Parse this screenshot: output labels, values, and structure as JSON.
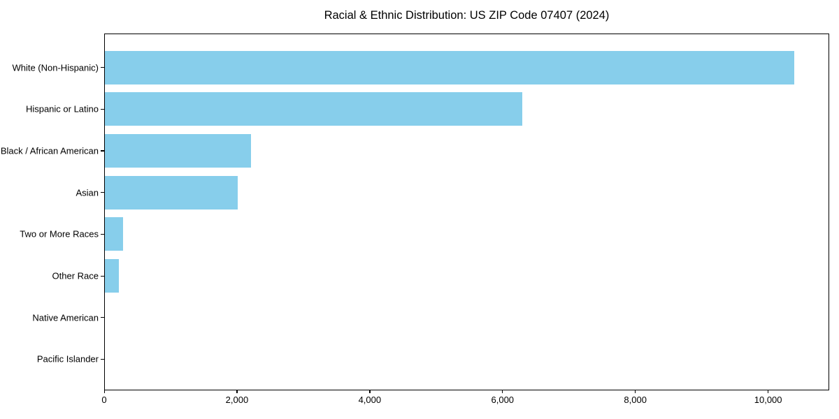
{
  "chart_data": {
    "type": "bar",
    "orientation": "horizontal",
    "title": "Racial & Ethnic Distribution: US ZIP Code 07407 (2024)",
    "categories": [
      "White (Non-Hispanic)",
      "Hispanic or Latino",
      "Black / African American",
      "Asian",
      "Two or More Races",
      "Other Race",
      "Native American",
      "Pacific Islander"
    ],
    "values": [
      10400,
      6300,
      2200,
      2000,
      270,
      210,
      0,
      0
    ],
    "xlabel": "",
    "ylabel": "",
    "xlim": [
      0,
      10920
    ],
    "xticks": [
      0,
      2000,
      4000,
      6000,
      8000,
      10000
    ],
    "xtick_labels": [
      "0",
      "2,000",
      "4,000",
      "6,000",
      "8,000",
      "10,000"
    ],
    "bar_color": "#87CEEB",
    "grid": false,
    "legend_position": "none"
  }
}
